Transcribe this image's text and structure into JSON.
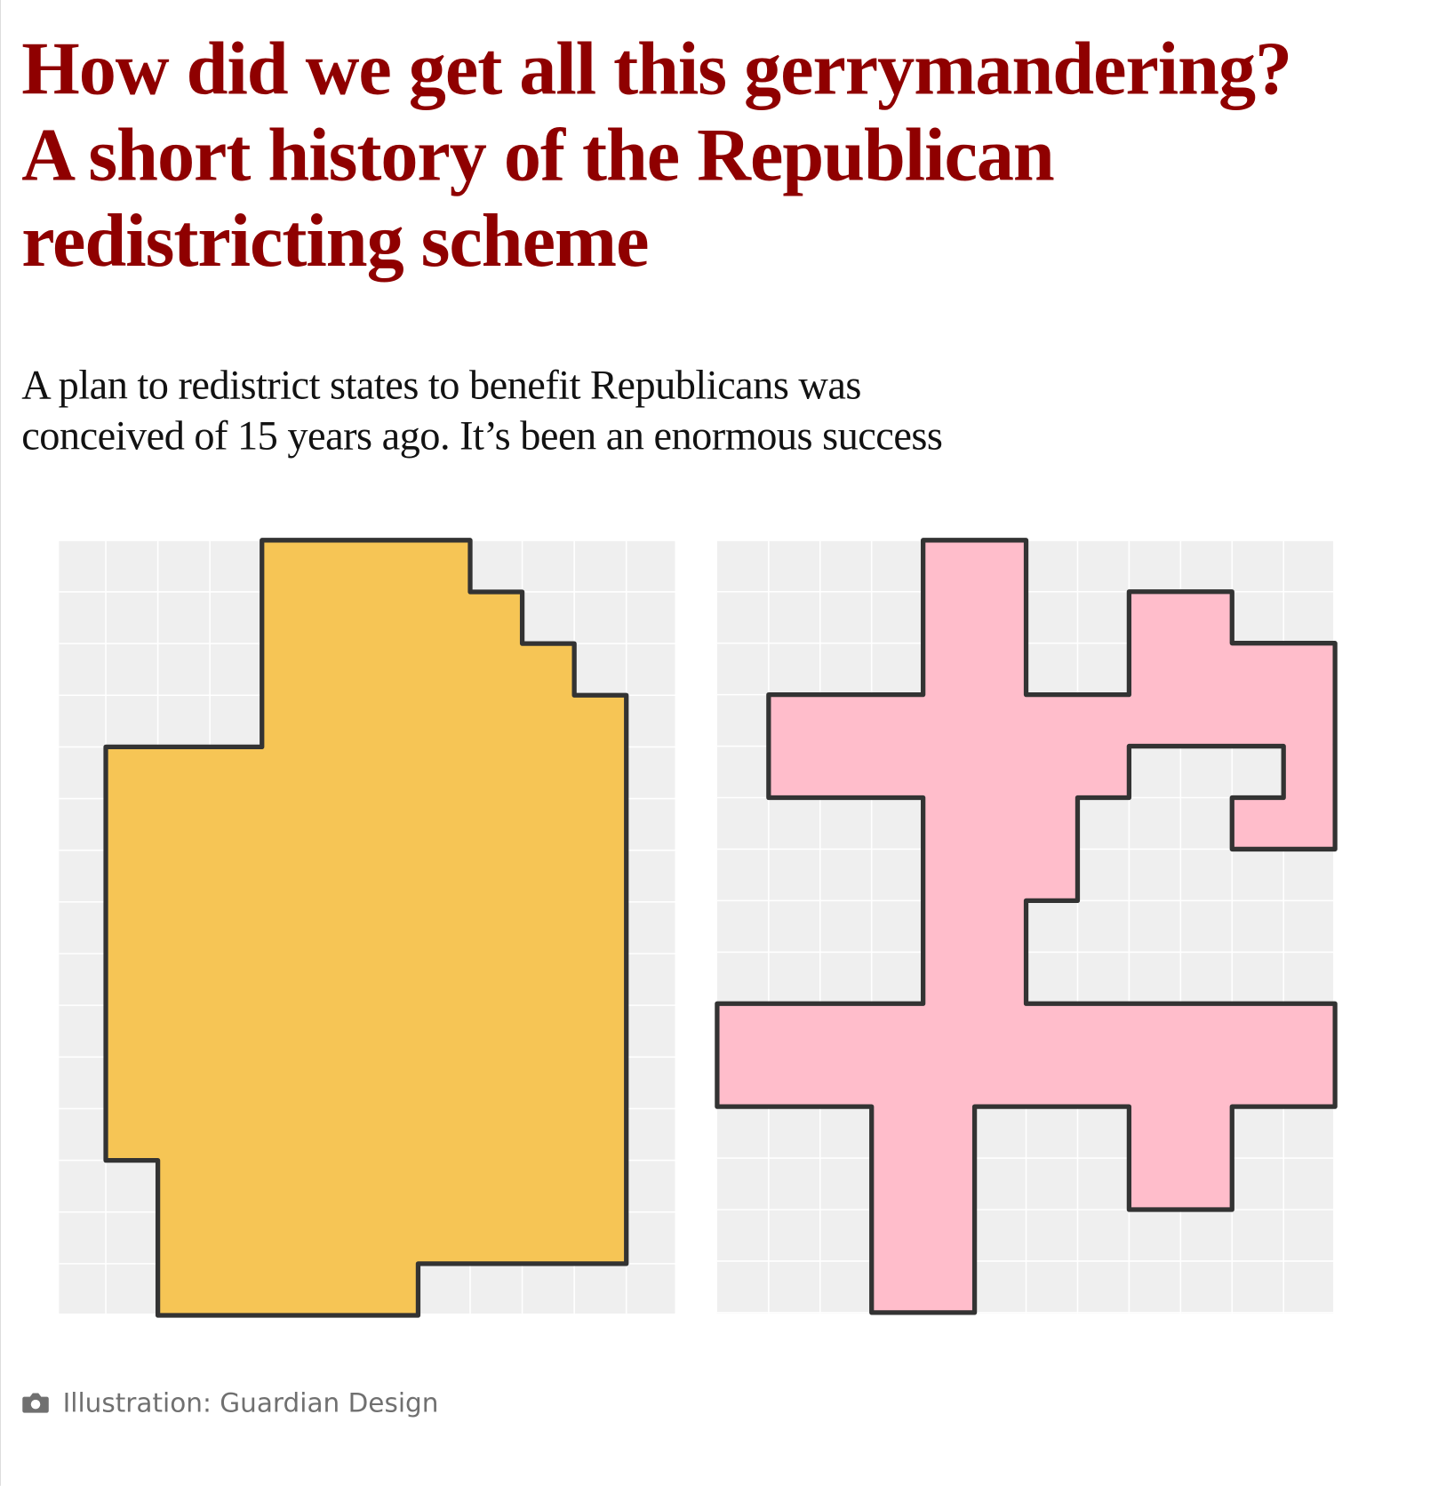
{
  "headline": [
    "How did we get all this gerrymandering?",
    "A short history of the Republican",
    "redistricting scheme"
  ],
  "standfirst": [
    "A plan to redistrict states to benefit Republicans was",
    "conceived of 15 years ago. It’s been an enormous success"
  ],
  "caption": "Illustration: Guardian Design"
}
